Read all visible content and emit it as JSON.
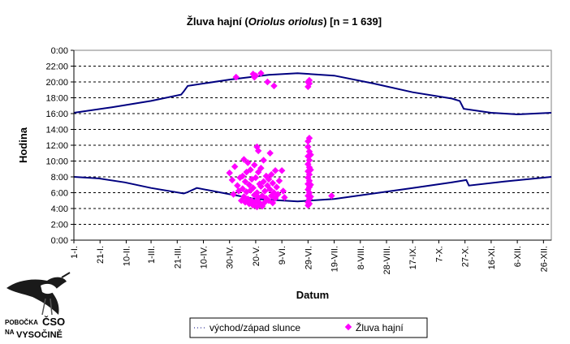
{
  "chart_data": {
    "type": "scatter",
    "title": {
      "prefix": "Žluva hajní (",
      "italic": "Oriolus oriolus",
      "suffix": ") [n = 1 639]"
    },
    "xlabel": "Datum",
    "ylabel": "Hodina",
    "x_ticks": [
      "1-I.",
      "21-I.",
      "10-II.",
      "1-III.",
      "21-III.",
      "10-IV.",
      "30-IV.",
      "20-V.",
      "9-VI.",
      "29-VI.",
      "19-VII.",
      "8-VIII.",
      "28-VIII.",
      "17-IX.",
      "7-X.",
      "27-X.",
      "16-XI.",
      "6-XII.",
      "26-XII."
    ],
    "x_tick_days": [
      1,
      21,
      41,
      60,
      80,
      100,
      120,
      140,
      160,
      180,
      200,
      220,
      240,
      260,
      280,
      300,
      320,
      340,
      360
    ],
    "xlim": [
      1,
      366
    ],
    "y_ticks": [
      "0:00",
      "2:00",
      "4:00",
      "6:00",
      "8:00",
      "10:00",
      "12:00",
      "14:00",
      "16:00",
      "18:00",
      "20:00",
      "22:00",
      "0:00"
    ],
    "ylim": [
      0,
      24
    ],
    "grid": true,
    "legend": {
      "placement": "bottom",
      "items": [
        "východ/západ slunce",
        "Žluva hajní"
      ]
    },
    "colors": {
      "sun": "#000080",
      "bird": "#ff00ff",
      "grid": "#000000"
    },
    "series": [
      {
        "name": "východ/západ slunce",
        "kind": "line",
        "sunrise": {
          "day": [
            1,
            20,
            40,
            60,
            85,
            87,
            95,
            120,
            140,
            172,
            200,
            230,
            260,
            290,
            301,
            303,
            330,
            366
          ],
          "hour": [
            8.0,
            7.8,
            7.3,
            6.6,
            5.9,
            6.0,
            6.6,
            5.8,
            5.2,
            4.9,
            5.2,
            5.9,
            6.6,
            7.3,
            7.6,
            6.9,
            7.4,
            8.0
          ]
        },
        "sunset": {
          "day": [
            1,
            30,
            60,
            83,
            85,
            88,
            120,
            150,
            172,
            200,
            230,
            260,
            290,
            296,
            299,
            320,
            340,
            366
          ],
          "hour": [
            16.1,
            16.8,
            17.6,
            18.4,
            18.8,
            19.5,
            20.3,
            20.9,
            21.1,
            20.8,
            19.8,
            18.7,
            17.9,
            17.6,
            16.6,
            16.1,
            15.9,
            16.1
          ]
        }
      },
      {
        "name": "Žluva hajní",
        "kind": "scatter",
        "points": [
          [
            120,
            8.5
          ],
          [
            122,
            7.6
          ],
          [
            123,
            5.8
          ],
          [
            124,
            9.3
          ],
          [
            125,
            20.6
          ],
          [
            126,
            6.9
          ],
          [
            127,
            6.2
          ],
          [
            128,
            7.9
          ],
          [
            129,
            5.0
          ],
          [
            130,
            8.1
          ],
          [
            130,
            6.5
          ],
          [
            131,
            10.2
          ],
          [
            131,
            5.5
          ],
          [
            132,
            7.4
          ],
          [
            132,
            4.8
          ],
          [
            133,
            8.6
          ],
          [
            133,
            6.1
          ],
          [
            134,
            9.8
          ],
          [
            134,
            5.2
          ],
          [
            135,
            7.0
          ],
          [
            135,
            4.6
          ],
          [
            136,
            8.9
          ],
          [
            136,
            6.3
          ],
          [
            137,
            5.0
          ],
          [
            137,
            7.7
          ],
          [
            138,
            21.0
          ],
          [
            138,
            6.6
          ],
          [
            138,
            4.4
          ],
          [
            139,
            20.6
          ],
          [
            139,
            9.5
          ],
          [
            139,
            5.7
          ],
          [
            140,
            20.8
          ],
          [
            140,
            7.9
          ],
          [
            140,
            4.9
          ],
          [
            141,
            11.8
          ],
          [
            141,
            6.0
          ],
          [
            141,
            4.2
          ],
          [
            142,
            11.3
          ],
          [
            142,
            8.6
          ],
          [
            142,
            5.4
          ],
          [
            143,
            7.1
          ],
          [
            143,
            4.7
          ],
          [
            144,
            21.1
          ],
          [
            144,
            9.1
          ],
          [
            144,
            6.8
          ],
          [
            145,
            5.6
          ],
          [
            145,
            4.3
          ],
          [
            146,
            10.1
          ],
          [
            146,
            7.4
          ],
          [
            147,
            6.2
          ],
          [
            147,
            4.8
          ],
          [
            148,
            8.1
          ],
          [
            148,
            5.3
          ],
          [
            149,
            20.0
          ],
          [
            149,
            6.9
          ],
          [
            150,
            7.7
          ],
          [
            150,
            5.0
          ],
          [
            151,
            11.0
          ],
          [
            151,
            6.4
          ],
          [
            152,
            8.3
          ],
          [
            152,
            5.6
          ],
          [
            153,
            7.2
          ],
          [
            153,
            4.7
          ],
          [
            154,
            19.5
          ],
          [
            154,
            6.0
          ],
          [
            155,
            5.3
          ],
          [
            155,
            8.8
          ],
          [
            156,
            6.7
          ],
          [
            157,
            5.8
          ],
          [
            158,
            7.5
          ],
          [
            160,
            8.8
          ],
          [
            161,
            6.2
          ],
          [
            162,
            5.4
          ],
          [
            180,
            12.5
          ],
          [
            180,
            11.8
          ],
          [
            180,
            10.6
          ],
          [
            180,
            9.6
          ],
          [
            180,
            8.7
          ],
          [
            180,
            7.9
          ],
          [
            180,
            7.1
          ],
          [
            180,
            6.4
          ],
          [
            180,
            5.6
          ],
          [
            180,
            4.8
          ],
          [
            180,
            4.4
          ],
          [
            181,
            12.9
          ],
          [
            181,
            11.2
          ],
          [
            181,
            10.1
          ],
          [
            181,
            9.2
          ],
          [
            181,
            8.3
          ],
          [
            181,
            7.5
          ],
          [
            181,
            6.7
          ],
          [
            181,
            6.0
          ],
          [
            181,
            5.2
          ],
          [
            181,
            4.6
          ],
          [
            182,
            10.8
          ],
          [
            182,
            8.9
          ],
          [
            182,
            7.0
          ],
          [
            182,
            5.5
          ],
          [
            180,
            19.4
          ],
          [
            180,
            20.0
          ],
          [
            181,
            19.8
          ],
          [
            181,
            20.2
          ],
          [
            198,
            5.6
          ]
        ]
      }
    ]
  },
  "logo": {
    "line1": "POBOČKA",
    "line2": "ČSO",
    "line3": "NA",
    "line4": "VYSOČINĚ"
  }
}
